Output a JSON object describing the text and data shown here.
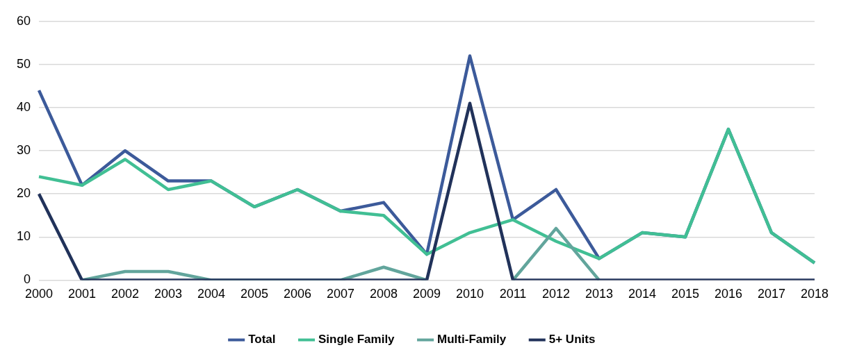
{
  "chart_data": {
    "type": "line",
    "categories": [
      "2000",
      "2001",
      "2002",
      "2003",
      "2004",
      "2005",
      "2006",
      "2007",
      "2008",
      "2009",
      "2010",
      "2011",
      "2012",
      "2013",
      "2014",
      "2015",
      "2016",
      "2017",
      "2018"
    ],
    "series": [
      {
        "name": "Total",
        "color": "#3c5a9a",
        "values": [
          44,
          22,
          30,
          23,
          23,
          17,
          21,
          16,
          18,
          6,
          52,
          14,
          21,
          5,
          11,
          10,
          35,
          11,
          4
        ]
      },
      {
        "name": "Single Family",
        "color": "#41bf94",
        "values": [
          24,
          22,
          28,
          21,
          23,
          17,
          21,
          16,
          15,
          6,
          11,
          14,
          9,
          5,
          11,
          10,
          35,
          11,
          4
        ]
      },
      {
        "name": "Multi-Family",
        "color": "#62a59c",
        "values": [
          null,
          0,
          2,
          2,
          0,
          0,
          0,
          0,
          3,
          0,
          null,
          0,
          12,
          0,
          null,
          null,
          null,
          null,
          null
        ]
      },
      {
        "name": "5+ Units",
        "color": "#21325a",
        "values": [
          20,
          0,
          0,
          0,
          0,
          0,
          0,
          0,
          0,
          0,
          41,
          0,
          0,
          0,
          0,
          0,
          0,
          0,
          0
        ]
      }
    ],
    "ylim": [
      0,
      60
    ],
    "yticks": [
      0,
      10,
      20,
      30,
      40,
      50,
      60
    ],
    "grid": "y",
    "legend": "bottom",
    "marker": "none",
    "line_style": "solid"
  }
}
